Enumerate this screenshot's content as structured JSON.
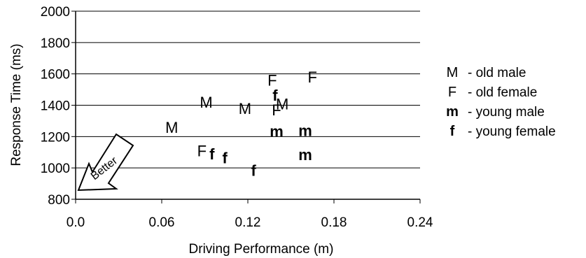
{
  "chart_data": {
    "type": "scatter",
    "xlabel": "Driving Performance (m)",
    "ylabel": "Response Time (ms)",
    "xlim": [
      0.0,
      0.24
    ],
    "ylim": [
      800,
      2000
    ],
    "x_ticks": [
      "0.0",
      "0.06",
      "0.12",
      "0.18",
      "0.24"
    ],
    "x_tick_values": [
      0.0,
      0.06,
      0.12,
      0.18,
      0.24
    ],
    "y_ticks": [
      "800",
      "1000",
      "1200",
      "1400",
      "1600",
      "1800",
      "2000"
    ],
    "y_tick_values": [
      800,
      1000,
      1200,
      1400,
      1600,
      1800,
      2000
    ],
    "grid": "horizontal",
    "legend_position": "right",
    "series": [
      {
        "symbol": "M",
        "name": "old male",
        "bold": false,
        "points": [
          [
            0.067,
            1260
          ],
          [
            0.091,
            1420
          ],
          [
            0.118,
            1380
          ],
          [
            0.144,
            1410
          ]
        ]
      },
      {
        "symbol": "F",
        "name": "old female",
        "bold": false,
        "points": [
          [
            0.137,
            1560
          ],
          [
            0.165,
            1580
          ],
          [
            0.14,
            1370
          ],
          [
            0.088,
            1110
          ]
        ]
      },
      {
        "symbol": "m",
        "name": "young male",
        "bold": true,
        "points": [
          [
            0.14,
            1235
          ],
          [
            0.16,
            1240
          ],
          [
            0.16,
            1085
          ]
        ]
      },
      {
        "symbol": "f",
        "name": "young female",
        "bold": true,
        "points": [
          [
            0.139,
            1465
          ],
          [
            0.095,
            1090
          ],
          [
            0.104,
            1065
          ],
          [
            0.124,
            985
          ]
        ]
      }
    ],
    "annotation": "Better"
  }
}
